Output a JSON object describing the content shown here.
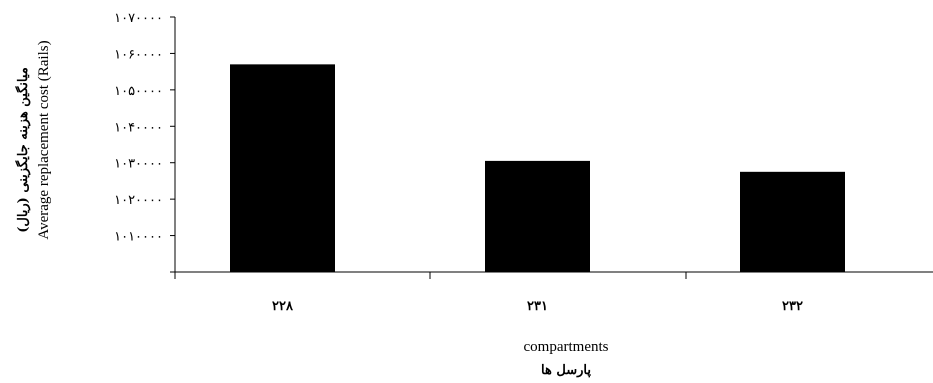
{
  "chart_data": {
    "type": "bar",
    "categories": [
      "۲۲۸",
      "۲۳۱",
      "۲۳۲"
    ],
    "values": [
      1057000,
      1030500,
      1027500
    ],
    "ylim": [
      1000000,
      1070000
    ],
    "yticks": [
      {
        "value": 1010000,
        "label": "۱۰۱۰۰۰۰"
      },
      {
        "value": 1020000,
        "label": "۱۰۲۰۰۰۰"
      },
      {
        "value": 1030000,
        "label": "۱۰۳۰۰۰۰"
      },
      {
        "value": 1040000,
        "label": "۱۰۴۰۰۰۰"
      },
      {
        "value": 1050000,
        "label": "۱۰۵۰۰۰۰"
      },
      {
        "value": 1060000,
        "label": "۱۰۶۰۰۰۰"
      },
      {
        "value": 1070000,
        "label": "۱۰۷۰۰۰۰"
      }
    ],
    "xlabel": "compartments",
    "xlabel_fa": "پارسل ها",
    "ylabel": "Average replacement cost (Rails)",
    "ylabel_fa": "میانگین هزینه جایگزینی (ریال)",
    "bar_color": "#000000",
    "grid": false,
    "legend": "none"
  }
}
